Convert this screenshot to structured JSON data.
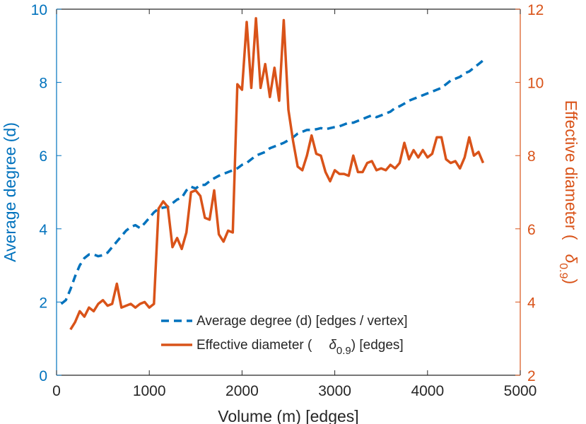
{
  "chart_data": {
    "type": "line",
    "title": "",
    "xlabel": "Volume (m) [edges]",
    "ylabel_left": "Average degree (d)",
    "ylabel_right_prefix": "Effective diameter (",
    "ylabel_right_symbol": "δ",
    "ylabel_right_sub": "0.9",
    "ylabel_right_suffix": ")",
    "xlim": [
      0,
      5000
    ],
    "ylim_left": [
      0,
      10
    ],
    "ylim_right": [
      2,
      12
    ],
    "xticks": [
      0,
      1000,
      2000,
      3000,
      4000,
      5000
    ],
    "yticks_left": [
      0,
      2,
      4,
      6,
      8,
      10
    ],
    "yticks_right": [
      2,
      4,
      6,
      8,
      10,
      12
    ],
    "grid": false,
    "legend_position": "lower-right",
    "colors": {
      "left": "#0072BD",
      "right": "#D95319",
      "axis": "#262626"
    },
    "series": [
      {
        "name": "Average degree (d) [edges / vertex]",
        "axis": "left",
        "style": "dashed",
        "x": [
          50,
          100,
          150,
          200,
          250,
          300,
          350,
          400,
          450,
          500,
          550,
          600,
          650,
          700,
          750,
          800,
          850,
          900,
          950,
          1000,
          1050,
          1100,
          1150,
          1200,
          1250,
          1300,
          1350,
          1400,
          1450,
          1500,
          1550,
          1600,
          1650,
          1700,
          1750,
          1800,
          1850,
          1900,
          1950,
          2000,
          2050,
          2100,
          2150,
          2200,
          2250,
          2300,
          2350,
          2400,
          2450,
          2500,
          2550,
          2600,
          2650,
          2700,
          2750,
          2800,
          2850,
          2900,
          2950,
          3000,
          3050,
          3100,
          3150,
          3200,
          3250,
          3300,
          3350,
          3400,
          3450,
          3500,
          3550,
          3600,
          3650,
          3700,
          3750,
          3800,
          3850,
          3900,
          3950,
          4000,
          4050,
          4100,
          4150,
          4200,
          4250,
          4300,
          4350,
          4400,
          4450,
          4500,
          4550,
          4600
        ],
        "values": [
          1.95,
          2.05,
          2.35,
          2.7,
          3.0,
          3.2,
          3.3,
          3.3,
          3.25,
          3.28,
          3.35,
          3.5,
          3.65,
          3.8,
          3.95,
          4.05,
          4.1,
          4.02,
          4.15,
          4.3,
          4.45,
          4.55,
          4.58,
          4.6,
          4.7,
          4.8,
          4.85,
          5.05,
          5.15,
          5.1,
          5.2,
          5.2,
          5.3,
          5.38,
          5.45,
          5.5,
          5.55,
          5.6,
          5.65,
          5.75,
          5.8,
          5.9,
          6.0,
          6.05,
          6.1,
          6.2,
          6.25,
          6.3,
          6.35,
          6.42,
          6.5,
          6.6,
          6.65,
          6.7,
          6.7,
          6.72,
          6.75,
          6.72,
          6.75,
          6.78,
          6.8,
          6.85,
          6.9,
          6.9,
          6.95,
          7.0,
          7.05,
          7.1,
          7.05,
          7.1,
          7.15,
          7.2,
          7.3,
          7.35,
          7.42,
          7.5,
          7.55,
          7.6,
          7.65,
          7.7,
          7.75,
          7.8,
          7.85,
          7.95,
          8.05,
          8.1,
          8.15,
          8.25,
          8.3,
          8.4,
          8.5,
          8.6
        ]
      },
      {
        "name": "Effective diameter (δ0.9) [edges]",
        "name_prefix": "Effective diameter (",
        "name_symbol": "δ",
        "name_sub": "0.9",
        "name_suffix": ") [edges]",
        "axis": "right",
        "style": "solid",
        "x": [
          150,
          200,
          250,
          300,
          350,
          400,
          450,
          500,
          550,
          600,
          650,
          700,
          750,
          800,
          850,
          900,
          950,
          1000,
          1050,
          1100,
          1150,
          1200,
          1250,
          1300,
          1350,
          1400,
          1450,
          1500,
          1550,
          1600,
          1650,
          1700,
          1750,
          1800,
          1850,
          1900,
          1950,
          2000,
          2050,
          2100,
          2150,
          2200,
          2250,
          2300,
          2350,
          2400,
          2450,
          2500,
          2550,
          2600,
          2650,
          2700,
          2750,
          2800,
          2850,
          2900,
          2950,
          3000,
          3050,
          3100,
          3150,
          3200,
          3250,
          3300,
          3350,
          3400,
          3450,
          3500,
          3550,
          3600,
          3650,
          3700,
          3750,
          3800,
          3850,
          3900,
          3950,
          4000,
          4050,
          4100,
          4150,
          4200,
          4250,
          4300,
          4350,
          4400,
          4450,
          4500,
          4550,
          4600
        ],
        "values": [
          3.25,
          3.45,
          3.75,
          3.6,
          3.85,
          3.75,
          3.95,
          4.05,
          3.9,
          3.95,
          4.5,
          3.85,
          3.9,
          3.95,
          3.85,
          3.95,
          4.0,
          3.85,
          3.95,
          6.55,
          6.75,
          6.6,
          5.5,
          5.75,
          5.45,
          5.9,
          7.0,
          7.05,
          6.9,
          6.3,
          6.25,
          7.05,
          5.85,
          5.65,
          5.95,
          5.9,
          9.95,
          9.8,
          11.65,
          9.85,
          11.75,
          9.85,
          10.5,
          9.6,
          10.4,
          9.5,
          11.7,
          9.25,
          8.4,
          7.7,
          7.6,
          8.0,
          8.55,
          8.05,
          8.0,
          7.55,
          7.3,
          7.6,
          7.5,
          7.5,
          7.45,
          8.0,
          7.55,
          7.55,
          7.8,
          7.85,
          7.6,
          7.65,
          7.6,
          7.75,
          7.65,
          7.8,
          8.35,
          7.9,
          8.15,
          7.95,
          8.15,
          7.95,
          8.05,
          8.5,
          8.5,
          7.9,
          7.8,
          7.85,
          7.65,
          7.95,
          8.5,
          8.0,
          8.1,
          7.8
        ]
      }
    ]
  }
}
